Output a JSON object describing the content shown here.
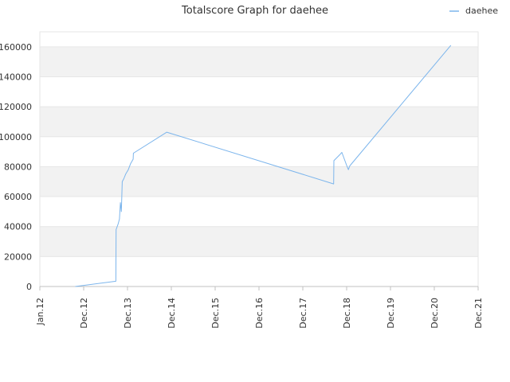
{
  "chart_data": {
    "type": "line",
    "title": "Totalscore Graph for daehee",
    "xlabel": "",
    "ylabel": "",
    "grid": true,
    "legend": {
      "position": "top-right"
    },
    "x_ticks": [
      "Jan.12",
      "Dec.12",
      "Dec.13",
      "Dec.14",
      "Dec.15",
      "Dec.16",
      "Dec.17",
      "Dec.18",
      "Dec.19",
      "Dec.20",
      "Dec.21"
    ],
    "y_ticks": [
      "0",
      "20000",
      "40000",
      "60000",
      "80000",
      "100000",
      "120000",
      "140000",
      "160000"
    ],
    "ylim": [
      0,
      170000
    ],
    "xlim": [
      "2012-01-01",
      "2021-12-01"
    ],
    "colors": {
      "series": "#7cb5ec",
      "band": "#f2f2f2",
      "grid": "#e6e6e6",
      "axis": "#c0c0c0",
      "text": "#333333"
    },
    "series": [
      {
        "name": "daehee",
        "points": [
          [
            "2012-10-20",
            0
          ],
          [
            "2013-09-20",
            3500
          ],
          [
            "2013-09-22",
            38000
          ],
          [
            "2013-10-10",
            42000
          ],
          [
            "2013-10-20",
            45000
          ],
          [
            "2013-10-28",
            56000
          ],
          [
            "2013-11-05",
            50000
          ],
          [
            "2013-11-12",
            70000
          ],
          [
            "2013-11-25",
            72000
          ],
          [
            "2013-12-10",
            75000
          ],
          [
            "2014-01-01",
            78000
          ],
          [
            "2014-01-20",
            82000
          ],
          [
            "2014-02-10",
            85000
          ],
          [
            "2014-02-12",
            89000
          ],
          [
            "2014-11-15",
            103000
          ],
          [
            "2018-08-25",
            68500
          ],
          [
            "2018-08-27",
            84000
          ],
          [
            "2018-10-15",
            88000
          ],
          [
            "2018-11-01",
            89500
          ],
          [
            "2018-12-10",
            81000
          ],
          [
            "2018-12-25",
            78000
          ],
          [
            "2019-01-05",
            80500
          ],
          [
            "2021-04-20",
            161000
          ]
        ]
      }
    ]
  }
}
